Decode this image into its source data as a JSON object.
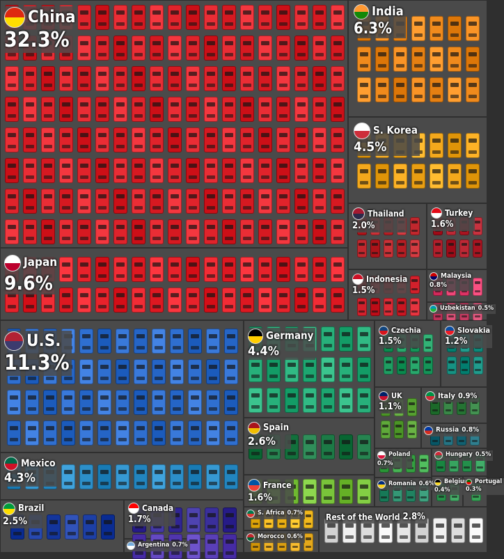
{
  "chart_data": {
    "type": "treemap",
    "series": [
      {
        "name": "China",
        "value": 32.3,
        "value_label": "32.3%",
        "color": "#e0232b",
        "flag": "cn"
      },
      {
        "name": "India",
        "value": 6.3,
        "value_label": "6.3%",
        "color": "#f08a1c",
        "flag": "in"
      },
      {
        "name": "S. Korea",
        "value": 4.5,
        "value_label": "4.5%",
        "color": "#f3a81c",
        "flag": "kr"
      },
      {
        "name": "Thailand",
        "value": 2.0,
        "value_label": "2.0%",
        "color": "#c1272d",
        "flag": "th"
      },
      {
        "name": "Turkey",
        "value": 1.6,
        "value_label": "1.6%",
        "color": "#b31e2b",
        "flag": "tr"
      },
      {
        "name": "Japan",
        "value": 9.6,
        "value_label": "9.6%",
        "color": "#e8222b",
        "flag": "jp"
      },
      {
        "name": "Indonesia",
        "value": 1.5,
        "value_label": "1.5%",
        "color": "#d3202b",
        "flag": "id"
      },
      {
        "name": "Malaysia",
        "value": 0.8,
        "value_label": "0.8%",
        "color": "#e63c6e",
        "flag": "my"
      },
      {
        "name": "Uzbekistan",
        "value": 0.5,
        "value_label": "0.5%",
        "color": "#d0456c",
        "flag": "uz"
      },
      {
        "name": "U.S.",
        "value": 11.3,
        "value_label": "11.3%",
        "color": "#2f6fd0",
        "flag": "us"
      },
      {
        "name": "Mexico",
        "value": 4.3,
        "value_label": "4.3%",
        "color": "#2c8fc9",
        "flag": "mx"
      },
      {
        "name": "Brazil",
        "value": 2.5,
        "value_label": "2.5%",
        "color": "#1d3fa6",
        "flag": "br"
      },
      {
        "name": "Canada",
        "value": 1.7,
        "value_label": "1.7%",
        "color": "#3a2f9c",
        "flag": "ca"
      },
      {
        "name": "Argentina",
        "value": 0.7,
        "value_label": "0.7%",
        "color": "#5a3fb8",
        "flag": "ar"
      },
      {
        "name": "Germany",
        "value": 4.4,
        "value_label": "4.4%",
        "color": "#27b07a",
        "flag": "de"
      },
      {
        "name": "Spain",
        "value": 2.6,
        "value_label": "2.6%",
        "color": "#1c7a46",
        "flag": "es"
      },
      {
        "name": "France",
        "value": 1.6,
        "value_label": "1.6%",
        "color": "#79c43a",
        "flag": "fr"
      },
      {
        "name": "Czechia",
        "value": 1.5,
        "value_label": "1.5%",
        "color": "#1e9e62",
        "flag": "cz"
      },
      {
        "name": "Slovakia",
        "value": 1.2,
        "value_label": "1.2%",
        "color": "#169283",
        "flag": "sk"
      },
      {
        "name": "UK",
        "value": 1.1,
        "value_label": "1.1%",
        "color": "#5fa93a",
        "flag": "gb"
      },
      {
        "name": "Italy",
        "value": 0.9,
        "value_label": "0.9%",
        "color": "#2f7d3d",
        "flag": "it"
      },
      {
        "name": "Russia",
        "value": 0.8,
        "value_label": "0.8%",
        "color": "#1b6a7a",
        "flag": "ru"
      },
      {
        "name": "Poland",
        "value": 0.7,
        "value_label": "0.7%",
        "color": "#3daa4a",
        "flag": "pl"
      },
      {
        "name": "Hungary",
        "value": 0.5,
        "value_label": "0.5%",
        "color": "#2d9a55",
        "flag": "hu"
      },
      {
        "name": "Romania",
        "value": 0.6,
        "value_label": "0.6%",
        "color": "#2a8d6b",
        "flag": "ro"
      },
      {
        "name": "Belgium",
        "value": 0.4,
        "value_label": "0.4%",
        "color": "#3aa35d",
        "flag": "be"
      },
      {
        "name": "Portugal",
        "value": 0.3,
        "value_label": "0.3%",
        "color": "#4bb86a",
        "flag": "pt"
      },
      {
        "name": "S. Africa",
        "value": 0.7,
        "value_label": "0.7%",
        "color": "#f2b81c",
        "flag": "za"
      },
      {
        "name": "Morocco",
        "value": 0.6,
        "value_label": "0.6%",
        "color": "#e5a81a",
        "flag": "ma"
      },
      {
        "name": "Rest of the World",
        "value": 2.8,
        "value_label": "2.8%",
        "color": "#e6e6e6",
        "flag": ""
      }
    ]
  }
}
